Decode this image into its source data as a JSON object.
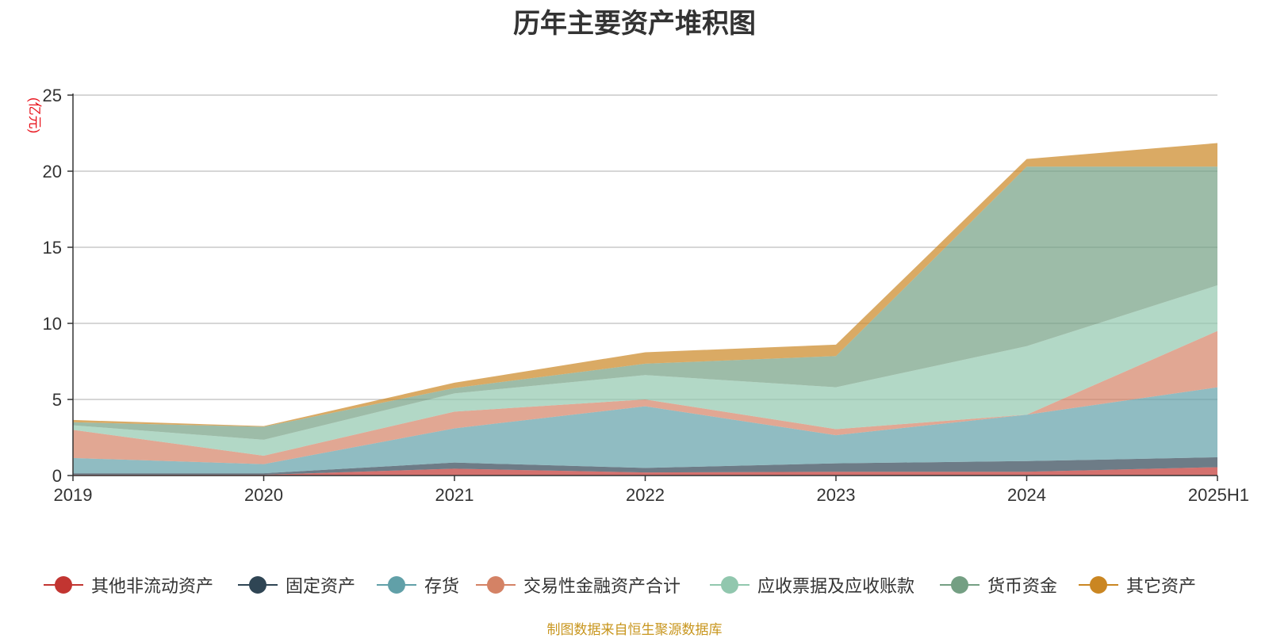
{
  "chart_data": {
    "type": "area",
    "stacked": true,
    "title": "历年主要资产堆积图",
    "unit_label": "(亿元)",
    "x": [
      "2019",
      "2020",
      "2021",
      "2022",
      "2023",
      "2024",
      "2025H1"
    ],
    "ylim": [
      0,
      25
    ],
    "yticks": [
      0,
      5,
      10,
      15,
      20,
      25
    ],
    "grid": true,
    "legend_position": "bottom",
    "series": [
      {
        "name": "其他非流动资产",
        "color": "#c23531",
        "values": [
          0.05,
          0.05,
          0.45,
          0.2,
          0.25,
          0.25,
          0.55
        ]
      },
      {
        "name": "固定资产",
        "color": "#2f4554",
        "values": [
          0.1,
          0.1,
          0.4,
          0.3,
          0.55,
          0.7,
          0.65
        ]
      },
      {
        "name": "存货",
        "color": "#61a0a8",
        "values": [
          1.0,
          0.6,
          2.25,
          4.05,
          1.85,
          3.05,
          4.6
        ]
      },
      {
        "name": "交易性金融资产合计",
        "color": "#d48265",
        "values": [
          1.85,
          0.55,
          1.1,
          0.45,
          0.4,
          0.0,
          3.7
        ]
      },
      {
        "name": "应收票据及应收账款",
        "color": "#91c7ae",
        "values": [
          0.3,
          1.05,
          1.2,
          1.6,
          2.75,
          4.5,
          3.0
        ]
      },
      {
        "name": "货币资金",
        "color": "#749f83",
        "values": [
          0.2,
          0.85,
          0.35,
          0.75,
          2.05,
          11.8,
          7.8
        ]
      },
      {
        "name": "其它资产",
        "color": "#ca8622",
        "values": [
          0.15,
          0.05,
          0.35,
          0.75,
          0.75,
          0.5,
          1.55
        ]
      }
    ]
  },
  "source_note": "制图数据来自恒生聚源数据库"
}
